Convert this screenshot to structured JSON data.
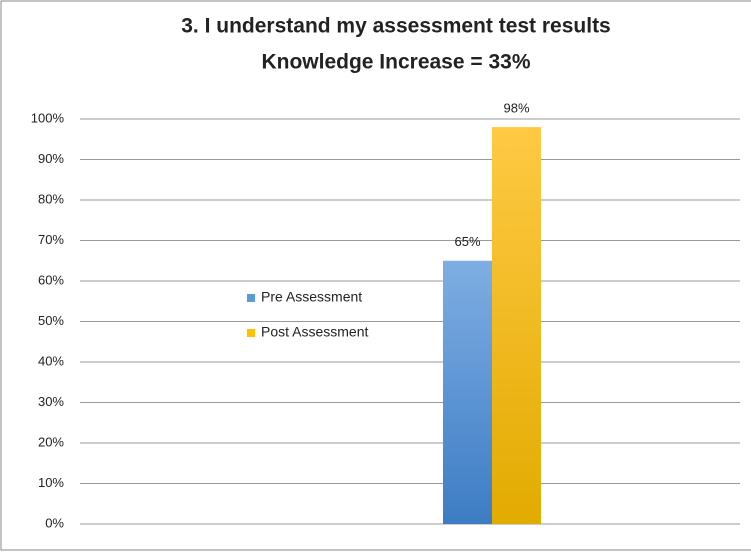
{
  "chart_data": {
    "type": "bar",
    "title": [
      "3.  I understand my assessment test results",
      "Knowledge Increase = 33%"
    ],
    "categories": [
      null
    ],
    "series": [
      {
        "name": "Pre Assessment",
        "color": "#5b9bd5",
        "values": [
          65
        ],
        "value_labels": [
          "65%"
        ]
      },
      {
        "name": "Post Assessment",
        "color": "#ffc000",
        "values": [
          98
        ],
        "value_labels": [
          "98%"
        ]
      }
    ],
    "ylim": [
      0,
      100
    ],
    "yticks": [
      {
        "value": 0,
        "label": "0%"
      },
      {
        "value": 10,
        "label": "10%"
      },
      {
        "value": 20,
        "label": "20%"
      },
      {
        "value": 30,
        "label": "30%"
      },
      {
        "value": 40,
        "label": "40%"
      },
      {
        "value": 50,
        "label": "50%"
      },
      {
        "value": 60,
        "label": "60%"
      },
      {
        "value": 70,
        "label": "70%"
      },
      {
        "value": 80,
        "label": "80%"
      },
      {
        "value": 90,
        "label": "90%"
      },
      {
        "value": 100,
        "label": "100%"
      }
    ],
    "grid": true,
    "legend": "left"
  }
}
